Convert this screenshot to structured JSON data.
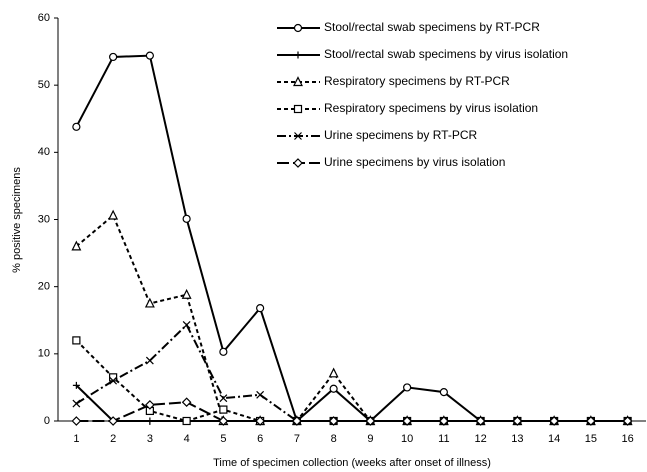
{
  "chart_data": {
    "type": "line",
    "xlabel": "Time of specimen collection (weeks after onset of illness)",
    "ylabel": "% positive specimens",
    "x": [
      1,
      2,
      3,
      4,
      5,
      6,
      7,
      8,
      9,
      10,
      11,
      12,
      13,
      14,
      15,
      16
    ],
    "xlim": [
      0.5,
      16.5
    ],
    "xticks": [
      1,
      2,
      3,
      4,
      5,
      6,
      7,
      8,
      9,
      10,
      11,
      12,
      13,
      14,
      15,
      16
    ],
    "ylim": [
      0,
      60
    ],
    "yticks": [
      0,
      10,
      20,
      30,
      40,
      50,
      60
    ],
    "grid": false,
    "legend": "upper right",
    "series": [
      {
        "name": "Stool/rectal swab specimens by RT-PCR",
        "color": "#000000",
        "dash": "solid",
        "marker": "circle",
        "values": [
          43.8,
          54.2,
          54.4,
          30.1,
          10.3,
          16.8,
          0,
          4.8,
          0,
          5,
          4.3,
          0,
          0,
          0,
          0,
          0
        ]
      },
      {
        "name": "Stool/rectal swab specimens by virus isolation",
        "color": "#000000",
        "dash": "solid",
        "marker": "plus",
        "values": [
          5.3,
          0,
          0,
          0,
          0,
          0,
          0,
          0,
          0,
          0,
          0,
          0,
          0,
          0,
          0,
          0
        ]
      },
      {
        "name": "Respiratory specimens by RT-PCR",
        "color": "#000000",
        "dash": "dashed",
        "marker": "triangle",
        "values": [
          26,
          30.6,
          17.5,
          18.8,
          0,
          0,
          0,
          7.1,
          0,
          0,
          0,
          0,
          0,
          0,
          0,
          0
        ]
      },
      {
        "name": "Respiratory specimens by virus isolation",
        "color": "#000000",
        "dash": "dashed",
        "marker": "square",
        "values": [
          12,
          6.5,
          1.5,
          0,
          1.7,
          0,
          0,
          0,
          0,
          0,
          0,
          0,
          0,
          0,
          0,
          0
        ]
      },
      {
        "name": "Urine specimens by RT-PCR",
        "color": "#000000",
        "dash": "dashdot",
        "marker": "x",
        "values": [
          2.6,
          6,
          9,
          14.3,
          3.4,
          3.9,
          0,
          0,
          0,
          0,
          0,
          0,
          0,
          0,
          0,
          0
        ]
      },
      {
        "name": "Urine specimens by virus isolation",
        "color": "#000000",
        "dash": "longdash",
        "marker": "diamond",
        "values": [
          0,
          0,
          2.4,
          2.8,
          0,
          0,
          0,
          0,
          0,
          0,
          0,
          0,
          0,
          0,
          0,
          0
        ]
      }
    ]
  }
}
